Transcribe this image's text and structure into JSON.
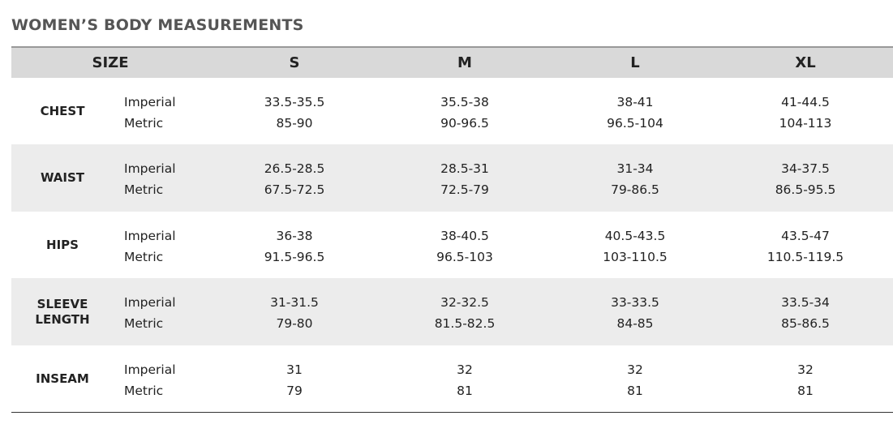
{
  "title": "WOMEN’S BODY MEASUREMENTS",
  "table": {
    "header": [
      "SIZE",
      "S",
      "M",
      "L",
      "XL"
    ],
    "rows": [
      {
        "label": "CHEST",
        "units": [
          "Imperial",
          "Metric"
        ],
        "values": [
          [
            "33.5-35.5",
            "85-90"
          ],
          [
            "35.5-38",
            "90-96.5"
          ],
          [
            "38-41",
            "96.5-104"
          ],
          [
            "41-44.5",
            "104-113"
          ]
        ]
      },
      {
        "label": "WAIST",
        "units": [
          "Imperial",
          "Metric"
        ],
        "values": [
          [
            "26.5-28.5",
            "67.5-72.5"
          ],
          [
            "28.5-31",
            "72.5-79"
          ],
          [
            "31-34",
            "79-86.5"
          ],
          [
            "34-37.5",
            "86.5-95.5"
          ]
        ]
      },
      {
        "label": "HIPS",
        "units": [
          "Imperial",
          "Metric"
        ],
        "values": [
          [
            "36-38",
            "91.5-96.5"
          ],
          [
            "38-40.5",
            "96.5-103"
          ],
          [
            "40.5-43.5",
            "103-110.5"
          ],
          [
            "43.5-47",
            "110.5-119.5"
          ]
        ]
      },
      {
        "label": "SLEEVE LENGTH",
        "units": [
          "Imperial",
          "Metric"
        ],
        "values": [
          [
            "31-31.5",
            "79-80"
          ],
          [
            "32-32.5",
            "81.5-82.5"
          ],
          [
            "33-33.5",
            "84-85"
          ],
          [
            "33.5-34",
            "85-86.5"
          ]
        ]
      },
      {
        "label": "INSEAM",
        "units": [
          "Imperial",
          "Metric"
        ],
        "values": [
          [
            "31",
            "79"
          ],
          [
            "32",
            "81"
          ],
          [
            "32",
            "81"
          ],
          [
            "32",
            "81"
          ]
        ]
      }
    ]
  }
}
